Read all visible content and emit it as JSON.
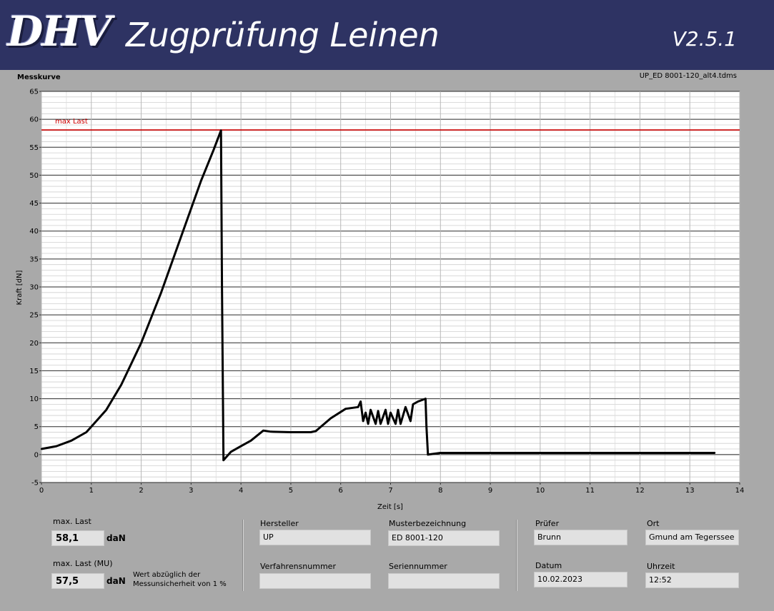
{
  "header": {
    "logo_text": "DHV",
    "title": "Zugprüfung Leinen",
    "version": "V2.5.1"
  },
  "chart_label": "Messkurve",
  "file_name": "UP_ED 8001-120_alt4.tdms",
  "chart_data": {
    "type": "line",
    "xlabel": "Zeit [s]",
    "ylabel": "Kraft [dN]",
    "xlim": [
      0,
      14
    ],
    "ylim": [
      -5,
      65
    ],
    "x_ticks": [
      "0",
      "1",
      "2",
      "3",
      "4",
      "5",
      "6",
      "7",
      "8",
      "9",
      "10",
      "11",
      "12",
      "13",
      "14"
    ],
    "y_ticks": [
      "65",
      "60",
      "55",
      "50",
      "45",
      "40",
      "35",
      "30",
      "25",
      "20",
      "15",
      "10",
      "5",
      "0",
      "-5"
    ],
    "grid": true,
    "series": [
      {
        "color": "#000000",
        "x": [
          0,
          0.3,
          0.6,
          0.9,
          1.0,
          1.3,
          1.6,
          2.0,
          2.4,
          2.8,
          3.2,
          3.45,
          3.6,
          3.62,
          3.65,
          3.8,
          4.0,
          4.2,
          4.45,
          4.6,
          5.0,
          5.4,
          5.5,
          5.8,
          6.1,
          6.35,
          6.4,
          6.45,
          6.5,
          6.55,
          6.6,
          6.7,
          6.75,
          6.8,
          6.9,
          6.95,
          7.0,
          7.1,
          7.15,
          7.2,
          7.3,
          7.4,
          7.45,
          7.55,
          7.7,
          7.72,
          7.75,
          8.0,
          9.0,
          10.0,
          11.0,
          12.0,
          13.0,
          13.5
        ],
        "y": [
          1,
          1.5,
          2.5,
          4,
          5,
          8,
          12.5,
          20,
          29,
          39,
          49,
          54.5,
          58,
          30,
          -1,
          0.5,
          1.5,
          2.5,
          4.3,
          4.1,
          4,
          4,
          4.2,
          6.5,
          8.2,
          8.5,
          9.5,
          6,
          7.5,
          5.5,
          8,
          5.5,
          7.8,
          5.5,
          8,
          5.5,
          7.5,
          5.5,
          8,
          5.5,
          8.5,
          6,
          9,
          9.5,
          10,
          5,
          0,
          0.3,
          0.3,
          0.3,
          0.3,
          0.3,
          0.3,
          0.3
        ]
      }
    ],
    "annotations": [
      {
        "text": "max Last",
        "y": 58.1,
        "color": "#cc0000"
      }
    ]
  },
  "results": {
    "max_last_label": "max. Last",
    "max_last_value": "58,1",
    "max_last_unit": "daN",
    "max_last_mu_label": "max. Last (MU)",
    "max_last_mu_value": "57,5",
    "max_last_mu_unit": "daN",
    "note_line1": "Wert abzüglich der",
    "note_line2": "Messunsicherheit von 1 %"
  },
  "fields": {
    "hersteller_label": "Hersteller",
    "hersteller_value": "UP",
    "muster_label": "Musterbezeichnung",
    "muster_value": "ED 8001-120",
    "verfahren_label": "Verfahrensnummer",
    "verfahren_value": "",
    "serien_label": "Seriennummer",
    "serien_value": "",
    "pruefer_label": "Prüfer",
    "pruefer_value": "Brunn",
    "ort_label": "Ort",
    "ort_value": "Gmund am Tegerssee",
    "datum_label": "Datum",
    "datum_value": "10.02.2023",
    "uhrzeit_label": "Uhrzeit",
    "uhrzeit_value": "12:52"
  }
}
